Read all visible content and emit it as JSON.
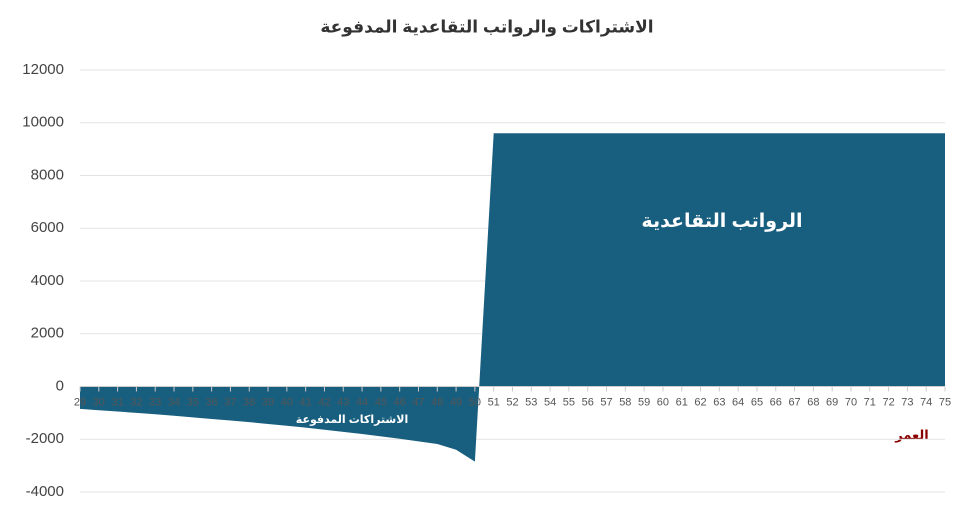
{
  "chart_data": {
    "type": "area",
    "title": "الاشتراكات والرواتب التقاعدية المدفوعة",
    "x_label": "العمر",
    "annotations": [
      "الرواتب التقاعدية",
      "الاشتراكات المدفوعة"
    ],
    "x": [
      29,
      30,
      31,
      32,
      33,
      34,
      35,
      36,
      37,
      38,
      39,
      40,
      41,
      42,
      43,
      44,
      45,
      46,
      47,
      48,
      49,
      50,
      51,
      52,
      53,
      54,
      55,
      56,
      57,
      58,
      59,
      60,
      61,
      62,
      63,
      64,
      65,
      66,
      67,
      68,
      69,
      70,
      71,
      72,
      73,
      74,
      75
    ],
    "values": [
      -850,
      -900,
      -950,
      -1000,
      -1050,
      -1110,
      -1170,
      -1230,
      -1290,
      -1350,
      -1420,
      -1490,
      -1560,
      -1640,
      -1720,
      -1800,
      -1890,
      -1980,
      -2080,
      -2180,
      -2400,
      -2850,
      9600,
      9600,
      9600,
      9600,
      9600,
      9600,
      9600,
      9600,
      9600,
      9600,
      9600,
      9600,
      9600,
      9600,
      9600,
      9600,
      9600,
      9600,
      9600,
      9600,
      9600,
      9600,
      9600,
      9600,
      9600
    ],
    "color": "#185f7f",
    "xlim": [
      29,
      75
    ],
    "ylim": [
      -4000,
      12000
    ],
    "yticks": [
      -4000,
      -2000,
      0,
      2000,
      4000,
      6000,
      8000,
      10000,
      12000
    ],
    "grid": true
  }
}
